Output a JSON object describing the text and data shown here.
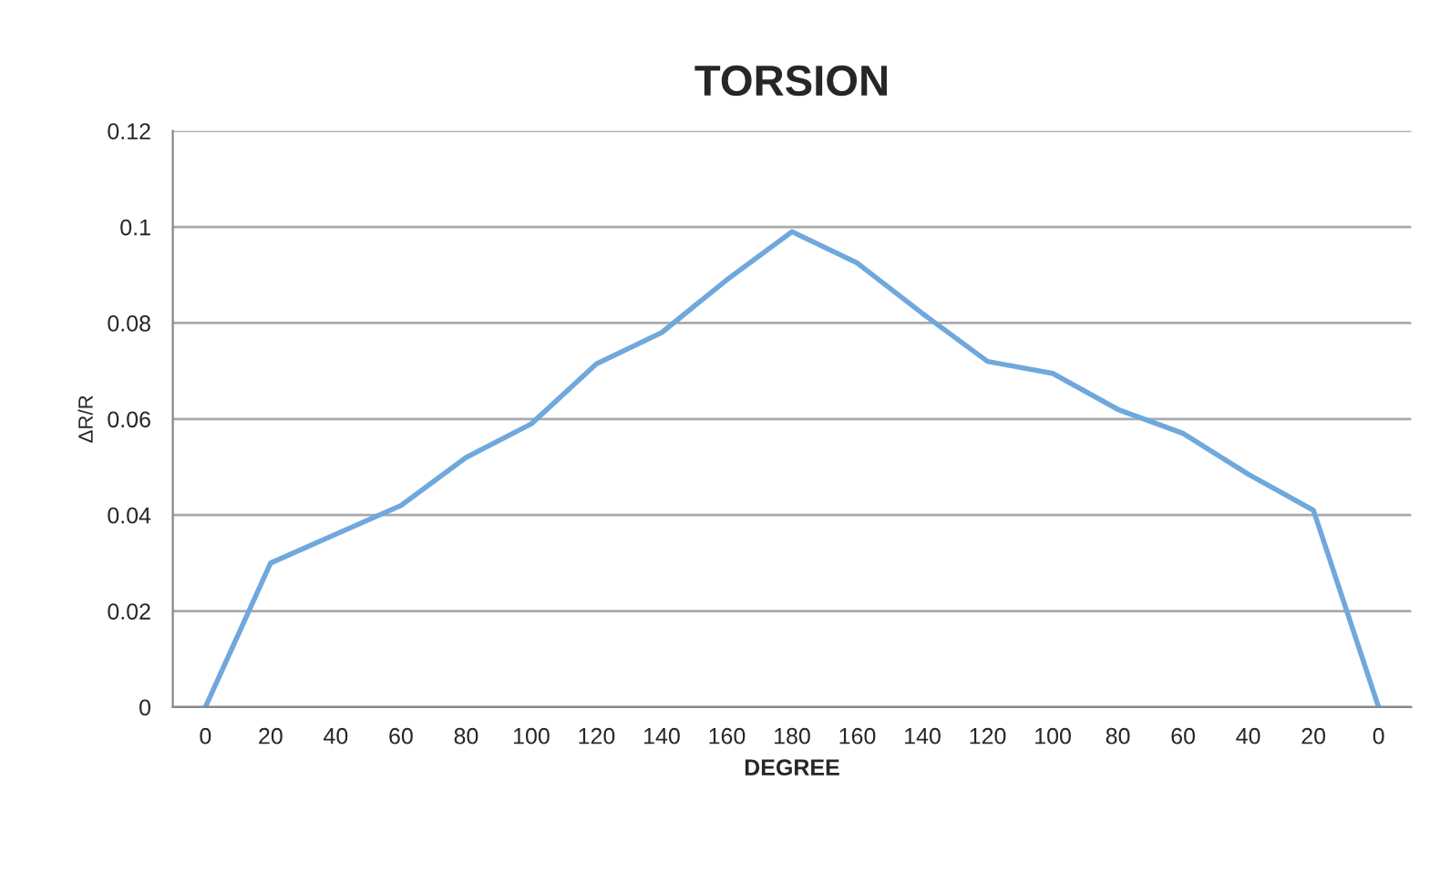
{
  "chart_data": {
    "type": "line",
    "title": "TORSION",
    "xlabel": "DEGREE",
    "ylabel": "ΔR/R",
    "categories": [
      "0",
      "20",
      "40",
      "60",
      "80",
      "100",
      "120",
      "140",
      "160",
      "180",
      "160",
      "140",
      "120",
      "100",
      "80",
      "60",
      "40",
      "20",
      "0"
    ],
    "series": [
      {
        "color": "#6fa8dc",
        "values": [
          0,
          0.03,
          0.036,
          0.042,
          0.052,
          0.059,
          0.0715,
          0.078,
          0.089,
          0.099,
          0.0925,
          0.082,
          0.072,
          0.0695,
          0.062,
          0.057,
          0.0485,
          0.041,
          0
        ]
      }
    ],
    "ylim": [
      0,
      0.12
    ],
    "yticks": [
      0,
      0.02,
      0.04,
      0.06,
      0.08,
      0.1,
      0.12
    ],
    "grid": "y",
    "legend": false,
    "marker": "none",
    "line_style": "solid"
  }
}
